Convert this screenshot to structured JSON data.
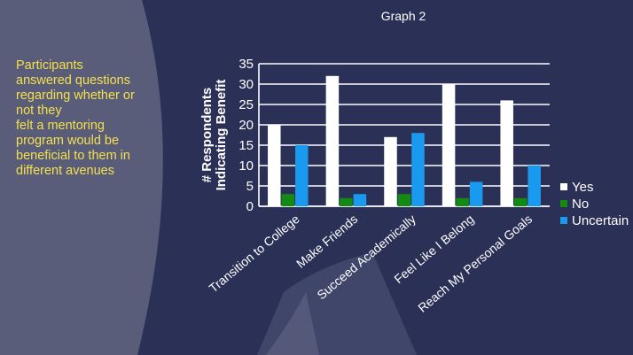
{
  "slide": {
    "graph_title": "Graph 2",
    "description_lines": [
      "Participants",
      "answered questions",
      "regarding whether or",
      "not they",
      "felt a mentoring",
      "program would be",
      "beneficial to them in",
      "different avenues"
    ]
  },
  "colors": {
    "yes": "#ffffff",
    "no": "#138a12",
    "uncertain": "#1a9aef",
    "text": "#ffffff",
    "description": "#f4e04d"
  },
  "chart_data": {
    "type": "bar",
    "title": "Graph 2",
    "ylabel_lines": [
      "# Respondents",
      "Indicating Benefit"
    ],
    "categories": [
      "Transition to College",
      "Make Friends",
      "Succeed Academically",
      "Feel Like I Belong",
      "Reach My Personal Goals"
    ],
    "series": [
      {
        "name": "Yes",
        "values": [
          20,
          32,
          17,
          30,
          26
        ]
      },
      {
        "name": "No",
        "values": [
          3,
          2,
          3,
          2,
          2
        ]
      },
      {
        "name": "Uncertain",
        "values": [
          15,
          3,
          18,
          6,
          10
        ]
      }
    ],
    "ylim": [
      0,
      35
    ],
    "yticks": [
      0,
      5,
      10,
      15,
      20,
      25,
      30,
      35
    ],
    "grid": true,
    "legend": "right"
  }
}
